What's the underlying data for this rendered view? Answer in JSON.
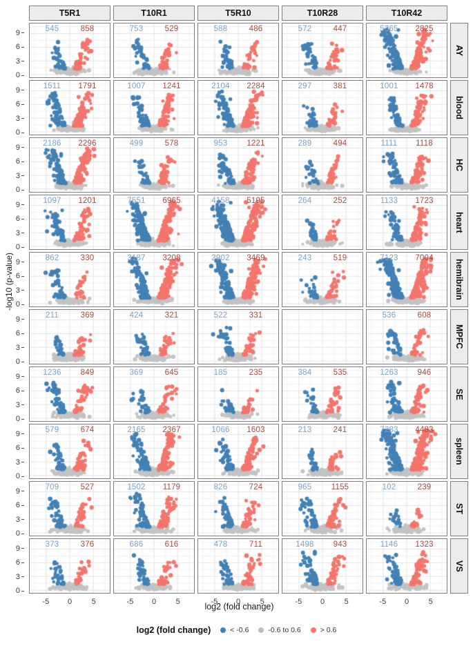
{
  "figure": {
    "y_axis_title": "-log10 (p-value)",
    "x_axis_title": "log2 (fold change)"
  },
  "legend": {
    "title": "log2 (fold change)",
    "entries": [
      {
        "label": "< -0.6",
        "color": "#4381b5"
      },
      {
        "label": "-0.6 to 0.6",
        "color": "#bdbdbd"
      },
      {
        "label": "> 0.6",
        "color": "#f3756c"
      }
    ]
  },
  "chart_data": {
    "type": "scatter",
    "subtype": "faceted-volcano-grid",
    "title": "",
    "xlabel": "log2 (fold change)",
    "ylabel": "-log10 (p-value)",
    "x_ticks": [
      -5,
      0,
      5
    ],
    "y_ticks": [
      0,
      3,
      6,
      9
    ],
    "xlim": [
      -8.5,
      8.5
    ],
    "ylim": [
      -0.6,
      11.2
    ],
    "grid": true,
    "legend_position": "bottom",
    "facet_columns": [
      "T5R1",
      "T10R1",
      "T5R10",
      "T10R28",
      "T10R42"
    ],
    "facet_rows": [
      "AY",
      "blood",
      "HC",
      "heart",
      "hemibrain",
      "MPFC",
      "SE",
      "spleen",
      "ST",
      "VS"
    ],
    "point_colors": {
      "down": "#4381b5",
      "neutral": "#c3c3c3",
      "up": "#f3756c"
    },
    "count_label_colors": {
      "down": "#7da3cd",
      "up": "#ad4b42"
    },
    "cells_note": "each cell = [blue count (log2FC < -0.6), red count (log2FC > 0.6)]; null = empty facet",
    "cells": [
      {
        "row": "AY",
        "counts": [
          [
            545,
            858
          ],
          [
            753,
            529
          ],
          [
            588,
            486
          ],
          [
            572,
            447
          ],
          [
            5365,
            2825
          ]
        ]
      },
      {
        "row": "blood",
        "counts": [
          [
            1511,
            1791
          ],
          [
            1007,
            1241
          ],
          [
            2104,
            2284
          ],
          [
            297,
            381
          ],
          [
            1001,
            1478
          ]
        ]
      },
      {
        "row": "HC",
        "counts": [
          [
            2186,
            2296
          ],
          [
            499,
            578
          ],
          [
            953,
            1221
          ],
          [
            289,
            494
          ],
          [
            1111,
            1118
          ]
        ]
      },
      {
        "row": "heart",
        "counts": [
          [
            1097,
            1201
          ],
          [
            7551,
            6965
          ],
          [
            4158,
            5195
          ],
          [
            264,
            252
          ],
          [
            1133,
            1723
          ]
        ]
      },
      {
        "row": "hemibrain",
        "counts": [
          [
            862,
            330
          ],
          [
            3187,
            3208
          ],
          [
            2902,
            3469
          ],
          [
            243,
            519
          ],
          [
            7123,
            7004
          ]
        ]
      },
      {
        "row": "MPFC",
        "counts": [
          [
            211,
            369
          ],
          [
            424,
            321
          ],
          [
            522,
            331
          ],
          null,
          [
            536,
            608
          ]
        ]
      },
      {
        "row": "SE",
        "counts": [
          [
            1236,
            849
          ],
          [
            369,
            645
          ],
          [
            185,
            235
          ],
          [
            384,
            535
          ],
          [
            1263,
            946
          ]
        ]
      },
      {
        "row": "spleen",
        "counts": [
          [
            579,
            674
          ],
          [
            2165,
            2367
          ],
          [
            1066,
            1603
          ],
          [
            213,
            241
          ],
          [
            7283,
            4483
          ]
        ]
      },
      {
        "row": "ST",
        "counts": [
          [
            709,
            527
          ],
          [
            1502,
            1179
          ],
          [
            826,
            724
          ],
          [
            965,
            1155
          ],
          [
            102,
            239
          ]
        ]
      },
      {
        "row": "VS",
        "counts": [
          [
            373,
            376
          ],
          [
            686,
            616
          ],
          [
            478,
            711
          ],
          [
            1498,
            943
          ],
          [
            1146,
            1323
          ]
        ]
      }
    ]
  }
}
